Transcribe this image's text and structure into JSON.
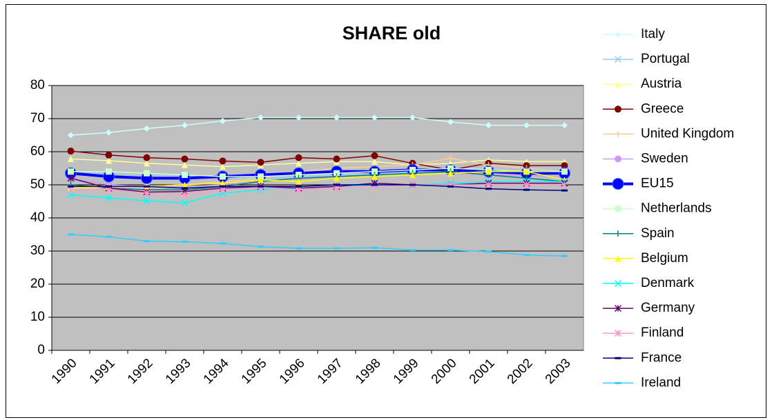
{
  "chart_data": {
    "type": "line",
    "title": "SHARE old",
    "categories": [
      "1990",
      "1991",
      "1992",
      "1993",
      "1994",
      "1995",
      "1996",
      "1997",
      "1998",
      "1999",
      "2000",
      "2001",
      "2002",
      "2003"
    ],
    "ylim": [
      0,
      80
    ],
    "yticks": [
      0,
      10,
      20,
      30,
      40,
      50,
      60,
      70,
      80
    ],
    "grid": true,
    "legend": "right",
    "series": [
      {
        "name": "Italy",
        "color": "#ccffff",
        "marker": "diamond",
        "values": [
          65,
          65.8,
          67,
          68,
          69.3,
          70.3,
          70.3,
          70.3,
          70.3,
          70.3,
          69,
          68,
          68,
          68
        ]
      },
      {
        "name": "Portugal",
        "color": "#99ccff",
        "marker": "x",
        "values": [
          53.5,
          53.5,
          53,
          52.5,
          52,
          52,
          52.5,
          53,
          53,
          54,
          54.5,
          55,
          55,
          55
        ]
      },
      {
        "name": "Austria",
        "color": "#ffff99",
        "marker": "triangle",
        "values": [
          57.8,
          57.3,
          56.5,
          56,
          55.5,
          56,
          56.5,
          57,
          57,
          56,
          56.5,
          57.5,
          57,
          57
        ]
      },
      {
        "name": "Greece",
        "color": "#800000",
        "marker": "circle",
        "values": [
          60.2,
          59,
          58.2,
          57.8,
          57.2,
          56.8,
          58.2,
          57.8,
          58.8,
          56.5,
          54.5,
          56.5,
          55.8,
          55.8
        ]
      },
      {
        "name": "United Kingdom",
        "color": "#ffcc99",
        "marker": "plus",
        "values": [
          49,
          49,
          49.5,
          50,
          51,
          52,
          54,
          55,
          55.5,
          56,
          58,
          56,
          55,
          54
        ]
      },
      {
        "name": "Sweden",
        "color": "#cc99ff",
        "marker": "circle",
        "values": [
          52,
          50,
          49.5,
          49.5,
          50,
          51,
          52,
          52,
          52.5,
          53,
          53.5,
          53,
          53,
          52
        ]
      },
      {
        "name": "EU15",
        "color": "#0000ff",
        "marker": "circle",
        "width": 4,
        "values": [
          53.5,
          52.5,
          52,
          52,
          52.5,
          53,
          53.5,
          54,
          54,
          54.5,
          54.5,
          54,
          53.5,
          53.5
        ]
      },
      {
        "name": "Netherlands",
        "color": "#ccffcc",
        "marker": "square",
        "values": [
          54,
          54,
          53.5,
          53,
          52.5,
          52.5,
          53,
          53.5,
          54,
          54.5,
          55,
          54.5,
          54,
          54
        ]
      },
      {
        "name": "Spain",
        "color": "#008080",
        "marker": "plus",
        "values": [
          50,
          49,
          48.5,
          48.5,
          49.5,
          51,
          52,
          52.5,
          53,
          53.5,
          54,
          53,
          52,
          51
        ]
      },
      {
        "name": "Belgium",
        "color": "#ffff00",
        "marker": "triangle",
        "values": [
          49,
          49.5,
          49.5,
          50,
          50.5,
          51.5,
          51,
          52,
          52.5,
          53,
          53.5,
          54,
          54,
          51.5
        ]
      },
      {
        "name": "Denmark",
        "color": "#00ffff",
        "marker": "x",
        "values": [
          47,
          46,
          45.2,
          44.5,
          47.5,
          48.5,
          49,
          49.5,
          50,
          50,
          50.5,
          51,
          51,
          51
        ]
      },
      {
        "name": "Germany",
        "color": "#660066",
        "marker": "asterisk",
        "values": [
          52,
          49,
          47.8,
          48,
          49,
          49.5,
          49,
          49.5,
          50.5,
          50,
          50,
          50.5,
          50.5,
          50.5
        ]
      },
      {
        "name": "Finland",
        "color": "#ff99cc",
        "marker": "asterisk",
        "values": [
          48.5,
          48.5,
          47.5,
          47,
          48.5,
          49,
          48.5,
          49,
          49.5,
          50,
          50,
          50,
          50,
          50
        ]
      },
      {
        "name": "France",
        "color": "#000080",
        "marker": "dash",
        "values": [
          49.5,
          49.5,
          49.5,
          49,
          49.5,
          49.5,
          49.5,
          50,
          50,
          50,
          49.5,
          48.8,
          48.5,
          48.3
        ]
      },
      {
        "name": "Ireland",
        "color": "#33ccff",
        "marker": "dash",
        "values": [
          35,
          34.3,
          33,
          32.8,
          32.3,
          31.3,
          30.8,
          30.8,
          31,
          30.3,
          30.3,
          29.8,
          28.8,
          28.5
        ]
      }
    ]
  }
}
